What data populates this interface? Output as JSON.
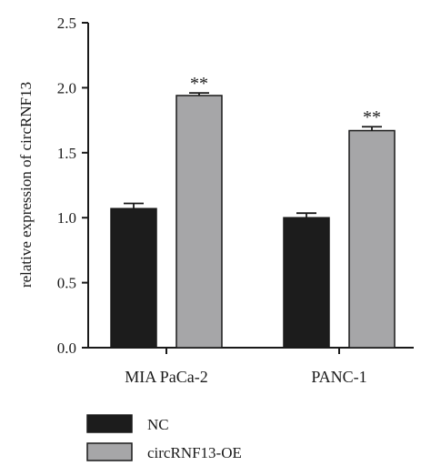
{
  "chart_data": {
    "type": "bar",
    "categories": [
      "MIA PaCa-2",
      "PANC-1"
    ],
    "series": [
      {
        "name": "NC",
        "values": [
          1.07,
          1.0
        ],
        "errors": [
          0.04,
          0.035
        ],
        "color": "#1c1c1c"
      },
      {
        "name": "circRNF13-OE",
        "values": [
          1.94,
          1.67
        ],
        "errors": [
          0.02,
          0.03
        ],
        "color": "#a6a6a8"
      }
    ],
    "annotations": [
      {
        "category": "MIA PaCa-2",
        "series": "circRNF13-OE",
        "text": "**"
      },
      {
        "category": "PANC-1",
        "series": "circRNF13-OE",
        "text": "**"
      }
    ],
    "ylabel": "relative expression of circRNF13",
    "xlabel": "",
    "ylim": [
      0,
      2.5
    ],
    "yticks": [
      "0.0",
      "0.5",
      "1.0",
      "1.5",
      "2.0",
      "2.5"
    ],
    "grid": false,
    "legend_position": "bottom-left"
  }
}
